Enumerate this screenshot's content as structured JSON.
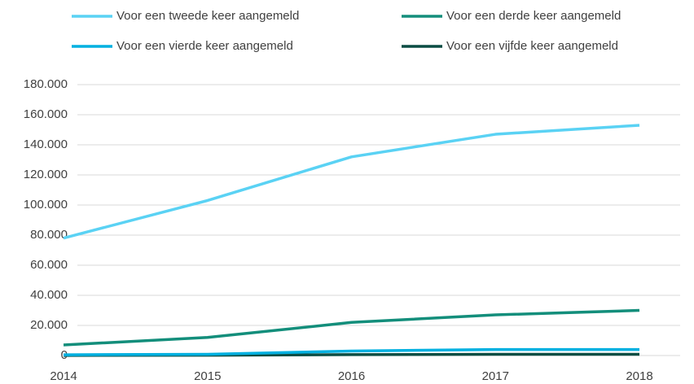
{
  "chart_data": {
    "type": "line",
    "categories": [
      "2014",
      "2015",
      "2016",
      "2017",
      "2018"
    ],
    "series": [
      {
        "name": "Voor een tweede keer aangemeld",
        "color": "#5ad2f4",
        "values": [
          78000,
          103000,
          132000,
          147000,
          153000
        ]
      },
      {
        "name": "Voor een derde keer aangemeld",
        "color": "#138e7b",
        "values": [
          7000,
          12000,
          22000,
          27000,
          30000
        ]
      },
      {
        "name": "Voor een vierde keer aangemeld",
        "color": "#00b0e0",
        "values": [
          500,
          800,
          3000,
          4000,
          4000
        ]
      },
      {
        "name": "Voor een vijfde keer aangemeld",
        "color": "#0b4d43",
        "values": [
          100,
          200,
          600,
          800,
          800
        ]
      }
    ],
    "ylim": [
      0,
      180000
    ],
    "yticks": [
      0,
      {
        "value": 20000,
        "label": "20.000"
      },
      {
        "value": 40000,
        "label": "40.000"
      },
      {
        "value": 60000,
        "label": "60.000"
      },
      {
        "value": 80000,
        "label": "80.000"
      },
      {
        "value": 100000,
        "label": "100.000"
      },
      {
        "value": 120000,
        "label": "120.000"
      },
      {
        "value": 140000,
        "label": "140.000"
      },
      {
        "value": 160000,
        "label": "160.000"
      },
      {
        "value": 180000,
        "label": "180.000"
      }
    ],
    "grid": true
  }
}
